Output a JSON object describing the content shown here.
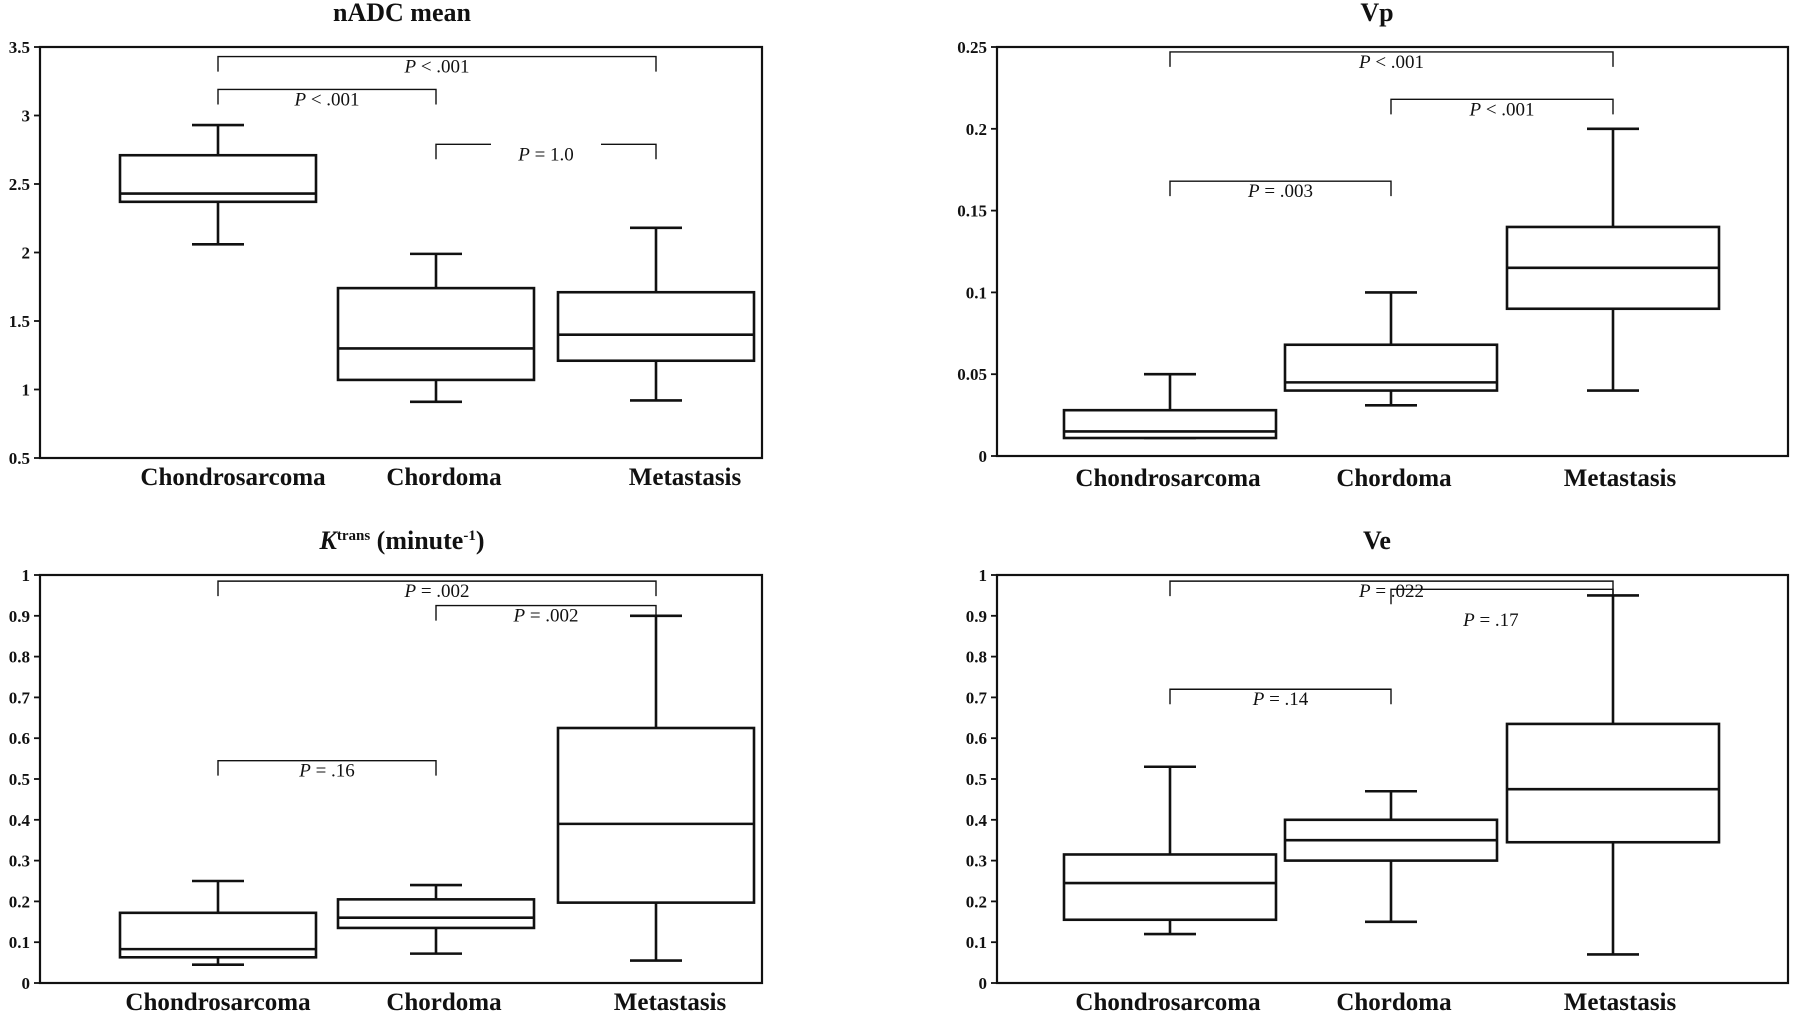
{
  "chart_data": [
    {
      "type": "box",
      "title": "nADC mean",
      "categories": [
        "Chondrosarcoma",
        "Chordoma",
        "Metastasis"
      ],
      "ylim": [
        0.5,
        3.5
      ],
      "yticks": [
        "0.5",
        "1",
        "1.5",
        "2",
        "2.5",
        "3",
        "3.5"
      ],
      "boxes": [
        {
          "min": 2.06,
          "q1": 2.37,
          "median": 2.43,
          "q3": 2.71,
          "max": 2.93
        },
        {
          "min": 0.91,
          "q1": 1.07,
          "median": 1.3,
          "q3": 1.74,
          "max": 1.99
        },
        {
          "min": 0.92,
          "q1": 1.21,
          "median": 1.4,
          "q3": 1.71,
          "max": 2.18
        }
      ],
      "comparisons": [
        {
          "from": 0,
          "to": 2,
          "level": 3.43,
          "label": "P < .001",
          "pre": "P",
          "post": " < .001"
        },
        {
          "from": 0,
          "to": 1,
          "level": 3.19,
          "label": "P < .001",
          "pre": "P",
          "post": " < .001"
        },
        {
          "from": 1,
          "to": 2,
          "level": 2.79,
          "label": "P = 1.0",
          "pre": "P",
          "post": " = 1.0",
          "gap": true
        }
      ]
    },
    {
      "type": "box",
      "title": "Vp",
      "categories": [
        "Chondrosarcoma",
        "Chordoma",
        "Metastasis"
      ],
      "ylim": [
        0,
        0.25
      ],
      "yticks": [
        "0",
        "0.05",
        "0.1",
        "0.15",
        "0.2",
        "0.25"
      ],
      "boxes": [
        {
          "min": 0.011,
          "q1": 0.011,
          "median": 0.015,
          "q3": 0.028,
          "max": 0.05
        },
        {
          "min": 0.031,
          "q1": 0.04,
          "median": 0.045,
          "q3": 0.068,
          "max": 0.1
        },
        {
          "min": 0.04,
          "q1": 0.09,
          "median": 0.115,
          "q3": 0.14,
          "max": 0.2
        }
      ],
      "comparisons": [
        {
          "from": 0,
          "to": 2,
          "level": 0.247,
          "label": "P < .001",
          "pre": "P",
          "post": " < .001"
        },
        {
          "from": 1,
          "to": 2,
          "level": 0.218,
          "label": "P < .001",
          "pre": "P",
          "post": " < .001"
        },
        {
          "from": 0,
          "to": 1,
          "level": 0.168,
          "label": "P = .003",
          "pre": "P",
          "post": " = .003"
        }
      ]
    },
    {
      "type": "box",
      "title": "Ktrans (minute-1)",
      "title_main": "K",
      "title_sup1": "trans",
      "title_mid": " (minute",
      "title_sup2": "-1",
      "title_end": ")",
      "categories": [
        "Chondrosarcoma",
        "Chordoma",
        "Metastasis"
      ],
      "ylim": [
        0,
        1
      ],
      "yticks": [
        "0",
        "0.1",
        "0.2",
        "0.3",
        "0.4",
        "0.5",
        "0.6",
        "0.7",
        "0.8",
        "0.9",
        "1"
      ],
      "boxes": [
        {
          "min": 0.045,
          "q1": 0.063,
          "median": 0.083,
          "q3": 0.172,
          "max": 0.25
        },
        {
          "min": 0.072,
          "q1": 0.135,
          "median": 0.16,
          "q3": 0.205,
          "max": 0.24
        },
        {
          "min": 0.055,
          "q1": 0.197,
          "median": 0.39,
          "q3": 0.625,
          "max": 0.9
        }
      ],
      "comparisons": [
        {
          "from": 0,
          "to": 2,
          "level": 0.985,
          "label": "P = .002",
          "pre": "P",
          "post": " = .002"
        },
        {
          "from": 1,
          "to": 2,
          "level": 0.925,
          "label": "P = .002",
          "pre": "P",
          "post": " = .002"
        },
        {
          "from": 0,
          "to": 1,
          "level": 0.545,
          "label": "P = .16",
          "pre": "P",
          "post": " = .16"
        }
      ]
    },
    {
      "type": "box",
      "title": "Ve",
      "categories": [
        "Chondrosarcoma",
        "Chordoma",
        "Metastasis"
      ],
      "ylim": [
        0,
        1
      ],
      "yticks": [
        "0",
        "0.1",
        "0.2",
        "0.3",
        "0.4",
        "0.5",
        "0.6",
        "0.7",
        "0.8",
        "0.9",
        "1"
      ],
      "boxes": [
        {
          "min": 0.12,
          "q1": 0.155,
          "median": 0.245,
          "q3": 0.315,
          "max": 0.53
        },
        {
          "min": 0.15,
          "q1": 0.3,
          "median": 0.35,
          "q3": 0.4,
          "max": 0.47
        },
        {
          "min": 0.07,
          "q1": 0.345,
          "median": 0.475,
          "q3": 0.635,
          "max": 0.95
        }
      ],
      "comparisons": [
        {
          "from": 0,
          "to": 2,
          "level": 0.985,
          "label": "P = .022",
          "pre": "P",
          "post": " = .022"
        },
        {
          "from": 1,
          "to": 2,
          "level": 0.965,
          "label": "P = .17",
          "pre": "P",
          "post": " = .17",
          "label_level": 0.89
        },
        {
          "from": 0,
          "to": 1,
          "level": 0.72,
          "label": "P = .14",
          "pre": "P",
          "post": " = .14"
        }
      ]
    }
  ]
}
